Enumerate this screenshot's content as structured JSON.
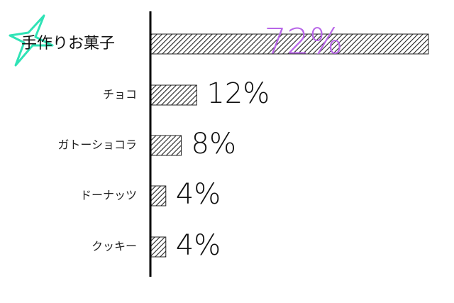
{
  "chart_data": {
    "type": "bar",
    "orientation": "horizontal",
    "categories": [
      "手作りお菓子",
      "チョコ",
      "ガトーショコラ",
      "ドーナッツ",
      "クッキー"
    ],
    "values": [
      72,
      12,
      8,
      4,
      4
    ],
    "value_labels": [
      "72%",
      "12%",
      "8%",
      "4%",
      "4%"
    ],
    "xlim": [
      0,
      72
    ],
    "color": "#222222",
    "highlight_color": "#b866e8",
    "star_color": "#2fe3b6"
  }
}
